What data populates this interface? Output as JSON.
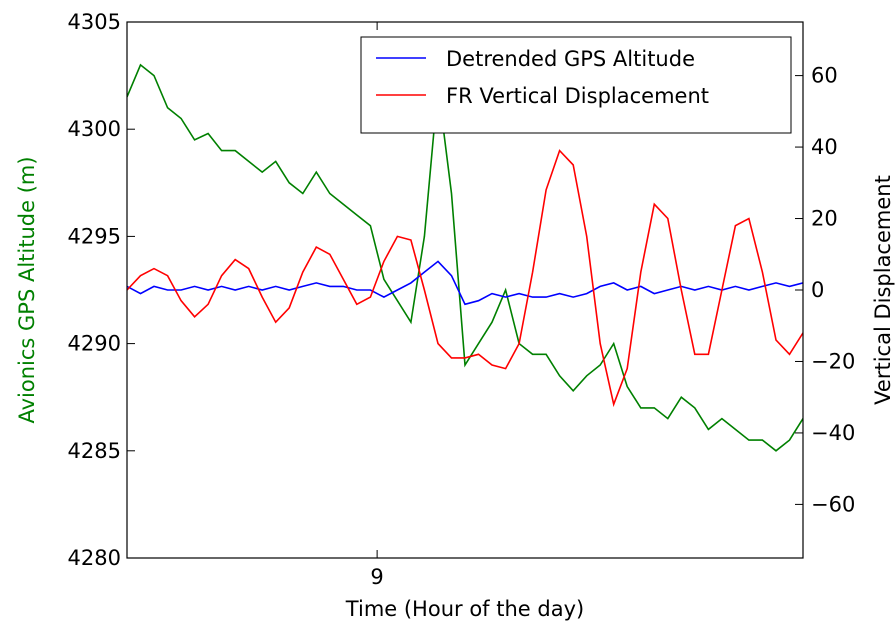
{
  "chart_data": {
    "type": "line",
    "xlabel": "Time (Hour of the day)",
    "ylabel": "Avionics GPS Altitude (m)",
    "y2label": "Vertical Displacement",
    "x": [
      8.963,
      8.965,
      8.967,
      8.969,
      8.971,
      8.973,
      8.975,
      8.977,
      8.979,
      8.981,
      8.983,
      8.985,
      8.987,
      8.989,
      8.991,
      8.993,
      8.995,
      8.997,
      8.999,
      9.001,
      9.003,
      9.005,
      9.007,
      9.009,
      9.011,
      9.013,
      9.015,
      9.017,
      9.019,
      9.021,
      9.023,
      9.025,
      9.027,
      9.029,
      9.031,
      9.033,
      9.035,
      9.037,
      9.039,
      9.041,
      9.043,
      9.045,
      9.047,
      9.049,
      9.051,
      9.053,
      9.055,
      9.057,
      9.059,
      9.061,
      9.063
    ],
    "series": [
      {
        "color": "#008000",
        "axis": "y",
        "values": [
          4301.5,
          4303,
          4302.5,
          4301,
          4300.5,
          4299.5,
          4299.8,
          4299,
          4299,
          4298.5,
          4298,
          4298.5,
          4297.5,
          4297,
          4298,
          4297,
          4296.5,
          4296,
          4295.5,
          4293,
          4292,
          4291,
          4295,
          4302,
          4297,
          4289,
          4290,
          4291,
          4292.5,
          4290,
          4289.5,
          4289.5,
          4288.5,
          4287.8,
          4288.5,
          4289,
          4290,
          4288,
          4287,
          4287,
          4286.5,
          4287.5,
          4287,
          4286,
          4286.5,
          4286,
          4285.5,
          4285.5,
          4285,
          4285.5,
          4286.5
        ]
      },
      {
        "name": "Detrended GPS Altitude",
        "color": "#0000ff",
        "axis": "y2",
        "values": [
          1,
          -1,
          1,
          0,
          0,
          1,
          0,
          1,
          0,
          1,
          0,
          1,
          0,
          1,
          2,
          1,
          1,
          0,
          0,
          -2,
          0,
          2,
          5,
          8,
          4,
          -4,
          -3,
          -1,
          -2,
          -1,
          -2,
          -2,
          -1,
          -2,
          -1,
          1,
          2,
          0,
          1,
          -1,
          0,
          1,
          0,
          1,
          0,
          1,
          0,
          1,
          2,
          1,
          2
        ]
      },
      {
        "name": "FR Vertical Displacement",
        "color": "#ff0000",
        "axis": "y2",
        "values": [
          0,
          4,
          6,
          4,
          -3,
          -7.5,
          -4,
          4,
          8.5,
          6,
          -2,
          -9,
          -5,
          5,
          12,
          10,
          3,
          -4,
          -2,
          8,
          15,
          14,
          0,
          -15,
          -19,
          -19,
          -18,
          -21,
          -22,
          -15,
          5,
          28,
          39,
          35,
          15,
          -15,
          -32,
          -22,
          5,
          24,
          20,
          0,
          -18,
          -18,
          0,
          18,
          20,
          5,
          -14,
          -18,
          -12
        ]
      }
    ],
    "xlim": [
      8.963,
      9.063
    ],
    "xticks": [
      9
    ],
    "ylim": [
      4280,
      4305
    ],
    "yticks": [
      4280,
      4285,
      4290,
      4295,
      4300,
      4305
    ],
    "y2lim": [
      -75,
      75
    ],
    "y2ticks": [
      {
        "value": -60,
        "label": "−60"
      },
      {
        "value": -40,
        "label": "−40"
      },
      {
        "value": -20,
        "label": "−20"
      },
      0,
      20,
      40,
      60
    ],
    "legend": "upper right",
    "grid": false
  }
}
